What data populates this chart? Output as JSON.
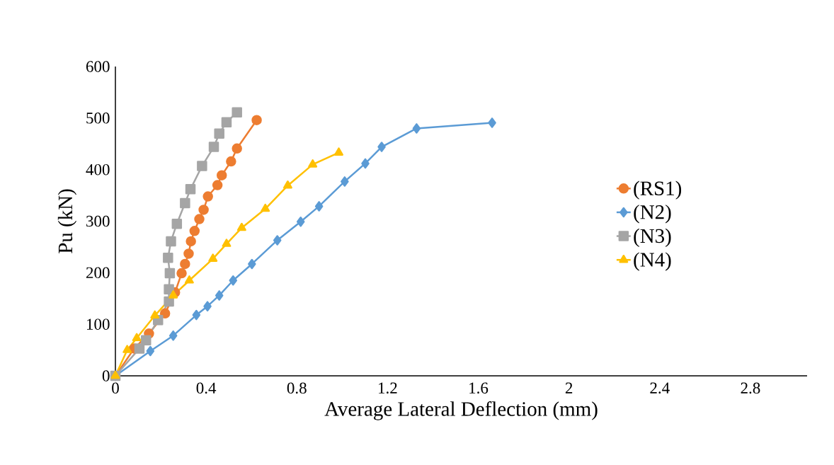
{
  "chart_data": {
    "type": "line",
    "xlabel": "Average Lateral Deflection (mm)",
    "ylabel": "Pu (kN)",
    "xlim": [
      0,
      3.05
    ],
    "xticks": [
      0,
      0.4,
      0.8,
      1.2,
      1.6,
      2,
      2.4,
      2.8
    ],
    "ylim": [
      0,
      600
    ],
    "yticks": [
      0,
      100,
      200,
      300,
      400,
      500,
      600
    ],
    "grid": false,
    "legend": "right",
    "line_style": "solid",
    "series": [
      {
        "name": "(RS1)",
        "color": "#ed7d31",
        "marker": "circle",
        "x": [
          0,
          0.083,
          0.148,
          0.219,
          0.263,
          0.292,
          0.307,
          0.323,
          0.333,
          0.349,
          0.37,
          0.389,
          0.408,
          0.45,
          0.469,
          0.51,
          0.536,
          0.623
        ],
        "values": [
          0,
          53,
          82,
          121,
          162,
          199,
          217,
          237,
          261,
          281,
          304,
          322,
          348,
          370,
          389,
          416,
          441,
          496
        ]
      },
      {
        "name": "(N2)",
        "color": "#5b9bd5",
        "marker": "diamond",
        "x": [
          0,
          0.154,
          0.255,
          0.357,
          0.406,
          0.458,
          0.519,
          0.602,
          0.714,
          0.817,
          0.898,
          1.011,
          1.102,
          1.174,
          1.328,
          1.661
        ],
        "values": [
          0,
          48,
          78,
          118,
          135,
          156,
          185,
          217,
          263,
          299,
          329,
          377,
          412,
          444,
          480,
          491
        ]
      },
      {
        "name": "(N3)",
        "color": "#a5a5a5",
        "marker": "square",
        "x": [
          0,
          0.106,
          0.135,
          0.188,
          0.236,
          0.236,
          0.24,
          0.232,
          0.245,
          0.271,
          0.307,
          0.331,
          0.382,
          0.434,
          0.458,
          0.49,
          0.536
        ],
        "values": [
          0,
          53,
          69,
          108,
          144,
          168,
          199,
          229,
          261,
          295,
          335,
          362,
          407,
          444,
          470,
          492,
          511
        ]
      },
      {
        "name": "(N4)",
        "color": "#ffc000",
        "marker": "triangle",
        "x": [
          0,
          0.052,
          0.094,
          0.174,
          0.255,
          0.326,
          0.43,
          0.49,
          0.557,
          0.661,
          0.76,
          0.87,
          0.985
        ],
        "values": [
          0,
          50,
          73,
          117,
          156,
          185,
          227,
          256,
          287,
          324,
          369,
          410,
          433
        ]
      }
    ]
  }
}
